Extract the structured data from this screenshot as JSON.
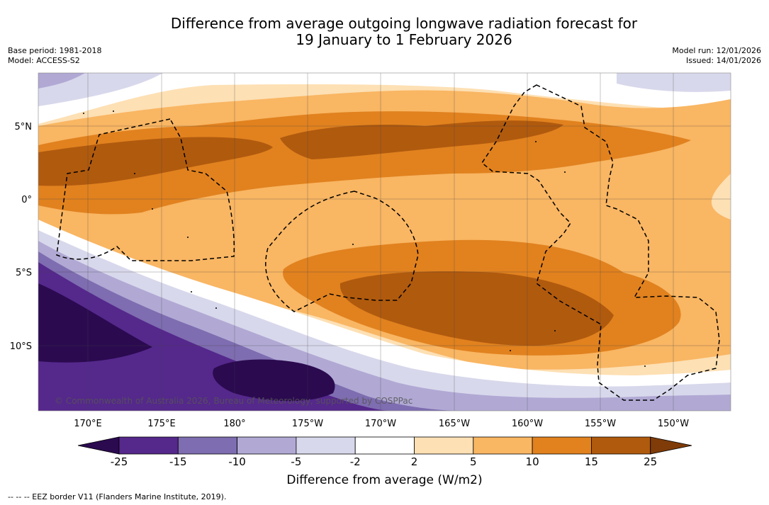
{
  "title": {
    "line1": "Difference from average outgoing longwave radiation forecast for",
    "line2": "19 January to 1 February 2026"
  },
  "meta_left": {
    "base_period": "Base period: 1981-2018",
    "model": "Model: ACCESS-S2"
  },
  "meta_right": {
    "model_run": "Model run: 12/01/2026",
    "issued": "Issued: 14/01/2026"
  },
  "map": {
    "lat_labels": [
      "5°N",
      "0°",
      "5°S",
      "10°S"
    ],
    "lon_labels": [
      "170°E",
      "175°E",
      "180°",
      "175°W",
      "170°W",
      "165°W",
      "160°W",
      "155°W",
      "150°W"
    ],
    "copyright": "© Commonwealth of Australia 2026, Bureau of Meteorology, supported by COSPPac"
  },
  "colorbar": {
    "ticks": [
      "-25",
      "-15",
      "-10",
      "-5",
      "-2",
      "2",
      "5",
      "10",
      "15",
      "25"
    ],
    "colors": [
      "#2b0a50",
      "#55288c",
      "#7e6db0",
      "#b1a9d4",
      "#d8d8ec",
      "#ffffff",
      "#fde0b4",
      "#f9b663",
      "#e1821f",
      "#b05a0e",
      "#7f3b08"
    ],
    "label": "Difference from average (W/m2)"
  },
  "footnote": "-- -- -- EEZ border V11 (Flanders Marine Institute, 2019)."
}
